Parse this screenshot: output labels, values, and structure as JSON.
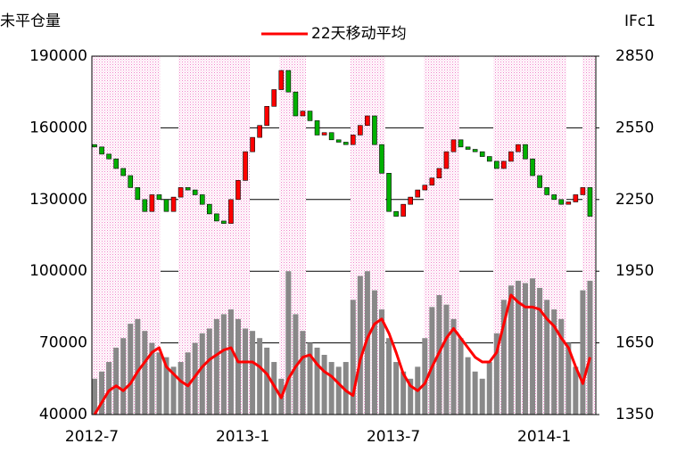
{
  "chart_data": {
    "type": "combo",
    "y_label": "未平仓量",
    "y2_label": "IFc1",
    "categories": [
      "2012-7",
      null,
      null,
      null,
      null,
      null,
      null,
      null,
      null,
      null,
      null,
      null,
      null,
      null,
      null,
      null,
      null,
      null,
      null,
      null,
      null,
      "2013-1",
      null,
      null,
      null,
      null,
      null,
      null,
      null,
      null,
      null,
      null,
      null,
      null,
      null,
      null,
      null,
      null,
      null,
      null,
      null,
      null,
      "2013-7",
      null,
      null,
      null,
      null,
      null,
      null,
      null,
      null,
      null,
      null,
      null,
      null,
      null,
      null,
      null,
      null,
      null,
      null,
      null,
      null,
      "2014-1",
      null,
      null,
      null,
      null,
      null,
      null
    ],
    "ylim": [
      40000,
      190000
    ],
    "yticks": [
      40000,
      70000,
      100000,
      130000,
      160000,
      190000
    ],
    "y2lim": [
      1350,
      2850
    ],
    "y2ticks": [
      1350,
      1650,
      1950,
      2250,
      2550,
      2850
    ],
    "grid": true,
    "series": [
      {
        "type": "bar",
        "color": "#888888",
        "values": [
          55000,
          58000,
          62000,
          68000,
          72000,
          78000,
          80000,
          75000,
          70000,
          66000,
          64000,
          60000,
          62000,
          66000,
          70000,
          74000,
          76000,
          80000,
          82000,
          84000,
          80000,
          76000,
          75000,
          72000,
          68000,
          62000,
          55000,
          100000,
          82000,
          75000,
          70000,
          68000,
          65000,
          62000,
          60000,
          62000,
          88000,
          98000,
          100000,
          92000,
          84000,
          72000,
          62000,
          58000,
          55000,
          60000,
          72000,
          85000,
          90000,
          86000,
          80000,
          72000,
          64000,
          58000,
          55000,
          62000,
          74000,
          88000,
          94000,
          96000,
          95000,
          97000,
          93000,
          88000,
          84000,
          80000,
          70000,
          60000,
          92000,
          96000
        ]
      },
      {
        "type": "line",
        "name": "22天移动平均",
        "color": "#ff0000",
        "values": [
          40000,
          45000,
          50000,
          52000,
          50000,
          53000,
          58000,
          62000,
          66000,
          68000,
          60000,
          57000,
          54000,
          52000,
          56000,
          60000,
          63000,
          65000,
          67000,
          68000,
          62000,
          62000,
          62000,
          60000,
          57000,
          52000,
          47000,
          55000,
          60000,
          64000,
          65000,
          61000,
          58000,
          56000,
          53000,
          50000,
          48000,
          63000,
          72000,
          78000,
          80000,
          74000,
          66000,
          57000,
          52000,
          50000,
          53000,
          60000,
          66000,
          72000,
          76000,
          72000,
          68000,
          64000,
          62000,
          62000,
          66000,
          78000,
          90000,
          87000,
          85000,
          85000,
          84000,
          80000,
          77000,
          72000,
          68000,
          60000,
          53000,
          64000
        ]
      },
      {
        "type": "candlestick",
        "axis": "y2",
        "up_color": "#ff0000",
        "down_color": "#00b000",
        "open": [
          2480,
          2470,
          2440,
          2420,
          2380,
          2350,
          2300,
          2250,
          2200,
          2270,
          2250,
          2200,
          2260,
          2300,
          2290,
          2270,
          2230,
          2190,
          2160,
          2150,
          2250,
          2330,
          2450,
          2510,
          2560,
          2640,
          2710,
          2790,
          2700,
          2600,
          2620,
          2580,
          2520,
          2530,
          2500,
          2490,
          2480,
          2520,
          2560,
          2600,
          2480,
          2360,
          2200,
          2180,
          2230,
          2260,
          2290,
          2310,
          2340,
          2380,
          2450,
          2500,
          2470,
          2460,
          2450,
          2430,
          2410,
          2380,
          2410,
          2450,
          2480,
          2420,
          2350,
          2300,
          2270,
          2250,
          2230,
          2240,
          2270,
          2300
        ],
        "close": [
          2470,
          2440,
          2420,
          2380,
          2350,
          2300,
          2250,
          2200,
          2270,
          2250,
          2200,
          2260,
          2300,
          2290,
          2270,
          2230,
          2190,
          2160,
          2150,
          2250,
          2330,
          2450,
          2510,
          2560,
          2640,
          2710,
          2790,
          2700,
          2600,
          2620,
          2580,
          2520,
          2530,
          2500,
          2490,
          2480,
          2520,
          2560,
          2600,
          2480,
          2360,
          2200,
          2180,
          2230,
          2260,
          2290,
          2310,
          2340,
          2380,
          2450,
          2500,
          2470,
          2460,
          2450,
          2430,
          2410,
          2380,
          2410,
          2450,
          2480,
          2420,
          2350,
          2300,
          2270,
          2250,
          2230,
          2240,
          2270,
          2300,
          2180
        ]
      }
    ]
  }
}
